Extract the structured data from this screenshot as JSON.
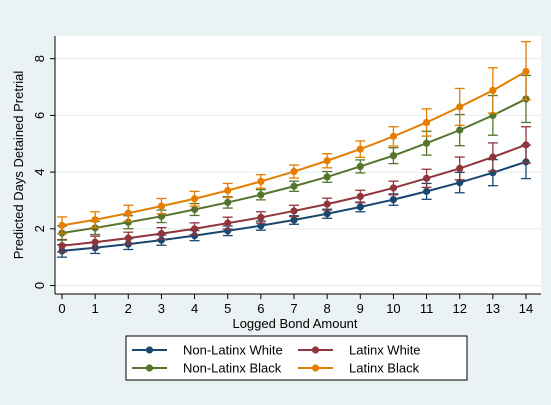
{
  "chart_data": {
    "type": "line",
    "title": "",
    "xlabel": "Logged Bond Amount",
    "ylabel": "Predicted Days Detained Pretrial",
    "x": [
      0,
      1,
      2,
      3,
      4,
      5,
      6,
      7,
      8,
      9,
      10,
      11,
      12,
      13,
      14
    ],
    "xticks": [
      "0",
      "1",
      "2",
      "3",
      "4",
      "5",
      "6",
      "7",
      "8",
      "9",
      "10",
      "11",
      "12",
      "13",
      "14"
    ],
    "yticks": [
      "0",
      "2",
      "4",
      "6",
      "8"
    ],
    "xlim": [
      0,
      14
    ],
    "ylim": [
      -0.3,
      8.8
    ],
    "grid": "horizontal",
    "legend_position": "bottom",
    "series": [
      {
        "name": "Non-Latinx White",
        "color": "#1a476f",
        "values": [
          1.22,
          1.33,
          1.46,
          1.6,
          1.76,
          1.93,
          2.11,
          2.31,
          2.53,
          2.77,
          3.03,
          3.32,
          3.63,
          3.98,
          4.36
        ],
        "ci_low": [
          1.0,
          1.13,
          1.27,
          1.42,
          1.58,
          1.76,
          1.95,
          2.16,
          2.37,
          2.6,
          2.83,
          3.04,
          3.27,
          3.52,
          3.77
        ],
        "ci_high": [
          1.44,
          1.53,
          1.65,
          1.78,
          1.94,
          2.1,
          2.27,
          2.46,
          2.69,
          2.94,
          3.23,
          3.6,
          3.99,
          4.44,
          4.95
        ]
      },
      {
        "name": "Latinx White",
        "color": "#90353b",
        "values": [
          1.4,
          1.53,
          1.67,
          1.83,
          2.0,
          2.2,
          2.4,
          2.63,
          2.87,
          3.14,
          3.44,
          3.78,
          4.13,
          4.53,
          4.96
        ],
        "ci_low": [
          1.18,
          1.32,
          1.46,
          1.62,
          1.79,
          1.99,
          2.2,
          2.43,
          2.66,
          2.92,
          3.2,
          3.46,
          3.73,
          4.03,
          4.32
        ],
        "ci_high": [
          1.62,
          1.74,
          1.88,
          2.04,
          2.21,
          2.41,
          2.6,
          2.83,
          3.08,
          3.36,
          3.68,
          4.1,
          4.53,
          5.03,
          5.6
        ]
      },
      {
        "name": "Non-Latinx Black",
        "color": "#55752f",
        "values": [
          1.85,
          2.03,
          2.23,
          2.44,
          2.68,
          2.93,
          3.2,
          3.5,
          3.83,
          4.2,
          4.58,
          5.02,
          5.48,
          6.0,
          6.58
        ],
        "ci_low": [
          1.6,
          1.8,
          2.0,
          2.22,
          2.47,
          2.73,
          3.02,
          3.32,
          3.64,
          3.97,
          4.3,
          4.6,
          4.93,
          5.3,
          5.75
        ],
        "ci_high": [
          2.1,
          2.26,
          2.46,
          2.66,
          2.89,
          3.13,
          3.38,
          3.68,
          4.02,
          4.43,
          4.86,
          5.44,
          6.03,
          6.7,
          7.41
        ]
      },
      {
        "name": "Latinx Black",
        "color": "#e37e00",
        "values": [
          2.12,
          2.32,
          2.55,
          2.8,
          3.06,
          3.35,
          3.67,
          4.02,
          4.4,
          4.81,
          5.26,
          5.75,
          6.3,
          6.88,
          7.55
        ],
        "ci_low": [
          1.82,
          2.04,
          2.27,
          2.53,
          2.8,
          3.1,
          3.43,
          3.79,
          4.15,
          4.52,
          4.92,
          5.27,
          5.65,
          6.08,
          6.55
        ],
        "ci_high": [
          2.42,
          2.6,
          2.83,
          3.07,
          3.32,
          3.6,
          3.91,
          4.25,
          4.65,
          5.1,
          5.6,
          6.23,
          6.95,
          7.68,
          8.6
        ]
      }
    ]
  }
}
